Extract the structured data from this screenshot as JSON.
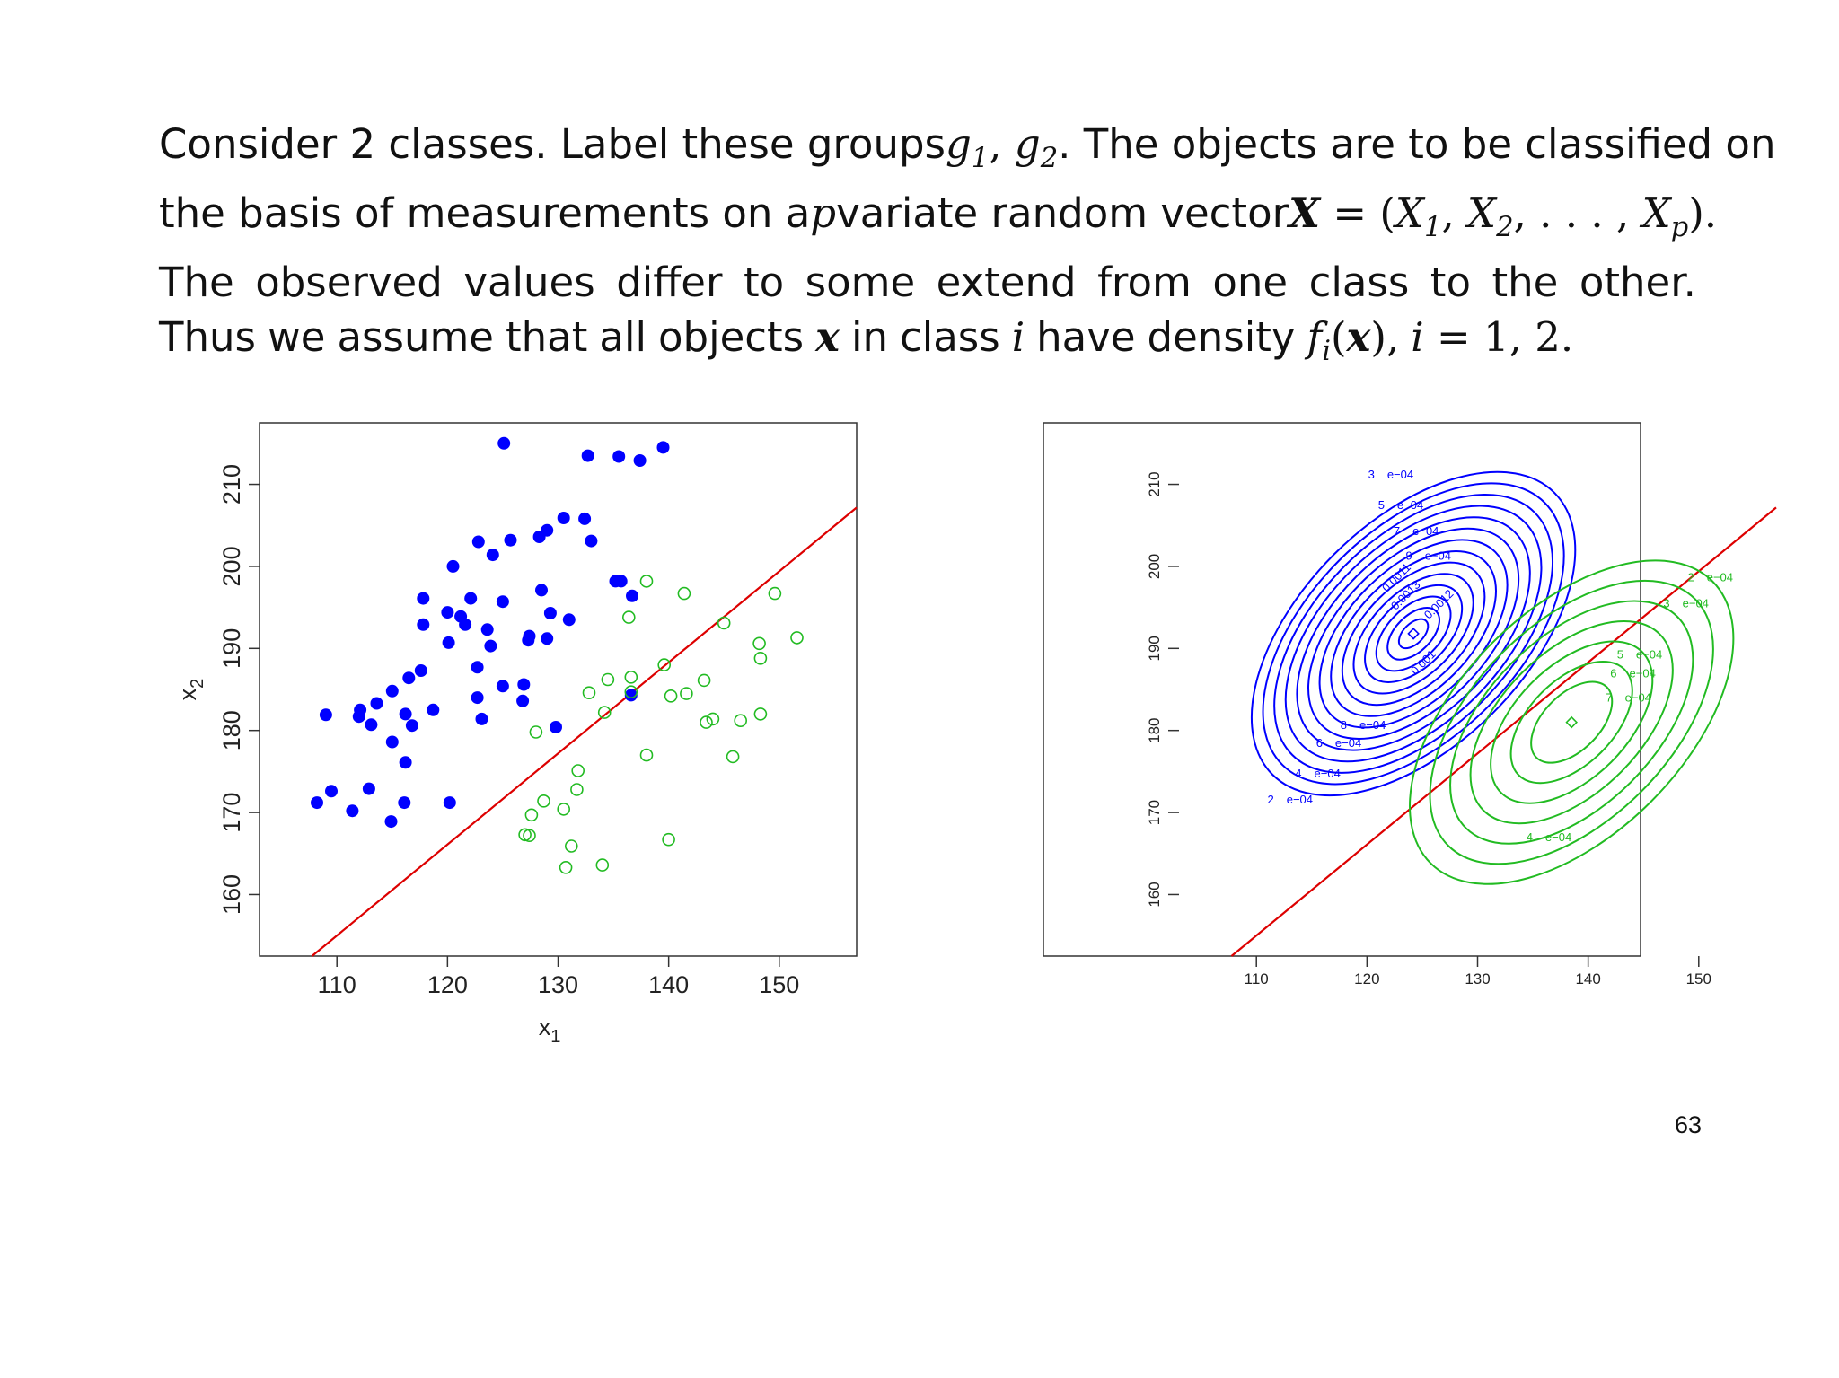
{
  "paragraph": {
    "line1": {
      "t1": "Consider 2 classes. Label these groups",
      "g1": "g",
      "g1_sub": "1",
      "comma": ",",
      "g2": "g",
      "g2_sub": "2",
      "t2": ". The objects are to be classified on"
    },
    "line2": {
      "t1": "the basis of measurements on a",
      "p": "p",
      "t2": "variate random vector",
      "X": "X",
      "eq": "= (",
      "X1": "X",
      "X1_sub": "1",
      "c1": ", ",
      "X2": "X",
      "X2_sub": "2",
      "dots": ", . . . , ",
      "Xp": "X",
      "Xp_sub": "p",
      "close": ")."
    },
    "line3": [
      "The",
      "observed",
      "values",
      "differ",
      "to",
      "some",
      "extend",
      "from",
      "one",
      "class",
      "to",
      "the",
      "other."
    ],
    "line4": {
      "thus": "Thus",
      "we": "we",
      "assume": "assume",
      "that": "that",
      "all": "all",
      "objects": "objects",
      "x": "x",
      "in": "in",
      "class": "class",
      "i": "i",
      "have": "have",
      "density": "density",
      "f": "f",
      "f_sub": "i",
      "fx_open": "(",
      "fx_x": "x",
      "fx_close": "),",
      "i2": "i",
      "eq": "= 1, 2."
    }
  },
  "page_number": "63",
  "colors": {
    "class1": "#0000ff",
    "class2": "#22bb22",
    "boundary": "#dd0000",
    "axis": "#333333"
  },
  "chart_data": [
    {
      "type": "scatter",
      "xlabel": "x1",
      "ylabel": "x2",
      "xlim": [
        103,
        157
      ],
      "ylim": [
        152.5,
        217.5
      ],
      "xticks": [
        "110",
        "120",
        "130",
        "140",
        "150"
      ],
      "yticks": [
        "160",
        "170",
        "180",
        "190",
        "200",
        "210"
      ],
      "boundary_line": {
        "slope": 1.11,
        "intercept": 32.9
      },
      "series": [
        {
          "marker": "filled-circle",
          "color": "#0000ff",
          "points": [
            [
              108.2,
              171.2
            ],
            [
              109.0,
              181.9
            ],
            [
              109.5,
              172.6
            ],
            [
              111.4,
              170.2
            ],
            [
              112.0,
              181.7
            ],
            [
              112.1,
              182.5
            ],
            [
              112.9,
              172.9
            ],
            [
              113.1,
              180.7
            ],
            [
              113.6,
              183.3
            ],
            [
              114.9,
              168.9
            ],
            [
              115.0,
              178.6
            ],
            [
              115.0,
              184.8
            ],
            [
              116.1,
              171.2
            ],
            [
              116.2,
              182.0
            ],
            [
              116.2,
              176.1
            ],
            [
              116.5,
              186.4
            ],
            [
              116.8,
              180.6
            ],
            [
              117.6,
              187.3
            ],
            [
              117.8,
              196.1
            ],
            [
              117.8,
              192.9
            ],
            [
              118.7,
              182.5
            ],
            [
              120.0,
              194.4
            ],
            [
              120.1,
              190.7
            ],
            [
              120.2,
              171.2
            ],
            [
              120.5,
              200.0
            ],
            [
              121.2,
              193.9
            ],
            [
              121.6,
              192.9
            ],
            [
              122.1,
              196.1
            ],
            [
              122.7,
              187.7
            ],
            [
              122.7,
              184.0
            ],
            [
              122.8,
              203.0
            ],
            [
              123.1,
              181.4
            ],
            [
              123.6,
              192.3
            ],
            [
              123.9,
              190.3
            ],
            [
              124.1,
              201.4
            ],
            [
              125.0,
              195.7
            ],
            [
              125.0,
              185.4
            ],
            [
              125.1,
              215.0
            ],
            [
              125.7,
              203.2
            ],
            [
              126.8,
              183.6
            ],
            [
              126.9,
              185.6
            ],
            [
              127.3,
              191.0
            ],
            [
              127.4,
              191.5
            ],
            [
              128.3,
              203.6
            ],
            [
              128.5,
              197.1
            ],
            [
              129.0,
              204.4
            ],
            [
              129.0,
              191.2
            ],
            [
              129.3,
              194.3
            ],
            [
              129.8,
              180.4
            ],
            [
              130.5,
              205.9
            ],
            [
              131.0,
              193.5
            ],
            [
              132.4,
              205.8
            ],
            [
              132.7,
              213.5
            ],
            [
              133.0,
              203.1
            ],
            [
              135.2,
              198.2
            ],
            [
              135.5,
              213.4
            ],
            [
              135.7,
              198.2
            ],
            [
              136.6,
              184.3
            ],
            [
              136.7,
              196.4
            ],
            [
              137.4,
              212.9
            ],
            [
              139.5,
              214.5
            ]
          ]
        },
        {
          "marker": "open-circle",
          "color": "#22bb22",
          "points": [
            [
              127.0,
              167.3
            ],
            [
              127.4,
              167.2
            ],
            [
              127.6,
              169.7
            ],
            [
              128.0,
              179.8
            ],
            [
              128.7,
              171.4
            ],
            [
              130.5,
              170.4
            ],
            [
              130.7,
              163.3
            ],
            [
              131.2,
              165.9
            ],
            [
              131.7,
              172.8
            ],
            [
              131.8,
              175.1
            ],
            [
              132.8,
              184.6
            ],
            [
              134.0,
              163.6
            ],
            [
              134.2,
              182.2
            ],
            [
              134.5,
              186.2
            ],
            [
              136.4,
              193.8
            ],
            [
              136.6,
              186.5
            ],
            [
              136.6,
              184.7
            ],
            [
              138.0,
              198.2
            ],
            [
              138.0,
              177.0
            ],
            [
              139.6,
              188.0
            ],
            [
              140.0,
              166.7
            ],
            [
              140.2,
              184.2
            ],
            [
              141.4,
              196.7
            ],
            [
              141.6,
              184.5
            ],
            [
              143.2,
              186.1
            ],
            [
              143.4,
              181.0
            ],
            [
              144.0,
              181.4
            ],
            [
              145.0,
              193.1
            ],
            [
              145.8,
              176.8
            ],
            [
              146.5,
              181.2
            ],
            [
              148.2,
              190.6
            ],
            [
              148.3,
              188.8
            ],
            [
              148.3,
              182.0
            ],
            [
              149.6,
              196.7
            ],
            [
              151.6,
              191.3
            ]
          ]
        }
      ]
    },
    {
      "type": "contour",
      "xlim": [
        103,
        157
      ],
      "ylim": [
        152.5,
        217.5
      ],
      "xticks": [
        "110",
        "120",
        "130",
        "140",
        "150"
      ],
      "yticks": [
        "160",
        "170",
        "180",
        "190",
        "200",
        "210"
      ],
      "boundary_line": {
        "slope": 1.11,
        "intercept": 32.9
      },
      "series": [
        {
          "color": "#0000ff",
          "center": [
            124.2,
            191.8
          ],
          "levels_visible": 14,
          "labels": [
            {
              "text": "2",
              "suffix": "e−04",
              "at": [
                111.0,
                171.1
              ]
            },
            {
              "text": "4",
              "suffix": "e−04",
              "at": [
                113.5,
                174.3
              ]
            },
            {
              "text": "6",
              "suffix": "e−04",
              "at": [
                115.4,
                178.0
              ]
            },
            {
              "text": "8",
              "suffix": "e−04",
              "at": [
                117.6,
                180.2
              ]
            },
            {
              "text": "3",
              "suffix": "e−04",
              "at": [
                120.1,
                210.7
              ]
            },
            {
              "text": "5",
              "suffix": "e−04",
              "at": [
                121.0,
                207.0
              ]
            },
            {
              "text": "7",
              "suffix": "e−04",
              "at": [
                122.4,
                203.8
              ]
            },
            {
              "text": "9",
              "suffix": "e−04",
              "at": [
                123.5,
                200.8
              ]
            },
            {
              "text": "0.0011",
              "at": [
                121.8,
                196.8
              ]
            },
            {
              "text": "0.0013",
              "at": [
                122.6,
                194.6
              ]
            },
            {
              "text": "0.0012",
              "at": [
                125.6,
                193.5
              ]
            },
            {
              "text": "0.001",
              "at": [
                124.4,
                186.7
              ]
            }
          ]
        },
        {
          "color": "#22bb22",
          "center": [
            138.5,
            181.0
          ],
          "levels_visible": 7,
          "labels": [
            {
              "text": "2",
              "suffix": "e−04",
              "at": [
                149.0,
                198.2
              ]
            },
            {
              "text": "3",
              "suffix": "e−04",
              "at": [
                146.8,
                195.0
              ]
            },
            {
              "text": "5",
              "suffix": "e−04",
              "at": [
                142.6,
                188.8
              ]
            },
            {
              "text": "6",
              "suffix": "e−04",
              "at": [
                142.0,
                186.5
              ]
            },
            {
              "text": "7",
              "suffix": "e−04",
              "at": [
                141.6,
                183.5
              ]
            },
            {
              "text": "4",
              "suffix": "e−04",
              "at": [
                134.4,
                166.5
              ]
            }
          ]
        }
      ]
    }
  ]
}
